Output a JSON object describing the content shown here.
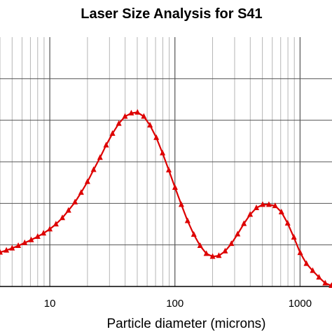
{
  "chart_data": {
    "type": "line",
    "title": "Laser Size Analysis for S41",
    "xlabel": "Particle diameter (microns)",
    "ylabel": "",
    "x_scale": "log",
    "xlim": [
      4,
      1800
    ],
    "ylim": [
      0,
      6
    ],
    "grid": true,
    "legend": "none",
    "x_tick_labels": [
      "10",
      "100",
      "1000"
    ],
    "x_tick_values": [
      10,
      100,
      1000
    ],
    "series": [
      {
        "color": "#dd0000",
        "marker": "triangle",
        "x": [
          4.0,
          4.5,
          5.0,
          5.6,
          6.3,
          7.1,
          8.0,
          8.9,
          10.0,
          11.2,
          12.6,
          14.1,
          15.9,
          17.8,
          20.0,
          22.4,
          25.2,
          28.2,
          31.7,
          35.6,
          39.9,
          44.8,
          50.2,
          56.4,
          63.2,
          71.0,
          79.6,
          89.3,
          100.2,
          112.5,
          126.2,
          141.6,
          158.9,
          178.3,
          200.0,
          224.4,
          251.8,
          282.5,
          317.0,
          355.7,
          399.1,
          447.7,
          502.4,
          563.7,
          632.5,
          709.6,
          796.2,
          893.4,
          1002.4,
          1124.7,
          1261.9,
          1416.0,
          1588.7,
          1782.6
        ],
        "y": [
          0.82,
          0.87,
          0.92,
          0.98,
          1.05,
          1.12,
          1.2,
          1.28,
          1.38,
          1.5,
          1.65,
          1.83,
          2.03,
          2.26,
          2.52,
          2.81,
          3.1,
          3.4,
          3.68,
          3.92,
          4.09,
          4.17,
          4.19,
          4.09,
          3.88,
          3.58,
          3.21,
          2.8,
          2.38,
          1.97,
          1.58,
          1.25,
          0.98,
          0.79,
          0.72,
          0.74,
          0.85,
          1.03,
          1.26,
          1.51,
          1.73,
          1.89,
          1.97,
          1.97,
          1.94,
          1.79,
          1.52,
          1.18,
          0.81,
          0.55,
          0.38,
          0.22,
          0.08,
          0.02
        ]
      }
    ]
  }
}
